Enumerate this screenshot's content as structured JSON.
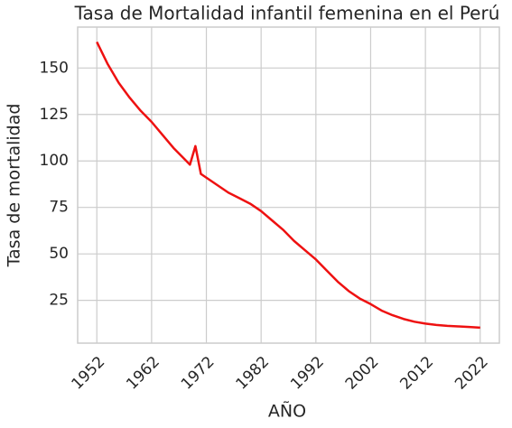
{
  "chart_data": {
    "type": "line",
    "title": "Tasa de Mortalidad infantil femenina en el Perú",
    "xlabel": "AÑO",
    "ylabel": "Tasa de mortalidad",
    "x": [
      1952,
      1954,
      1956,
      1958,
      1960,
      1962,
      1964,
      1966,
      1968,
      1969,
      1970,
      1971,
      1972,
      1974,
      1976,
      1978,
      1980,
      1982,
      1984,
      1986,
      1988,
      1990,
      1992,
      1994,
      1996,
      1998,
      2000,
      2002,
      2004,
      2006,
      2008,
      2010,
      2012,
      2014,
      2016,
      2018,
      2020,
      2022
    ],
    "series": [
      {
        "name": "Tasa de mortalidad",
        "color": "#ee1111",
        "values": [
          164,
          152,
          142,
          134,
          127,
          121,
          114,
          107,
          101,
          98,
          108,
          93,
          91,
          87,
          83,
          80,
          77,
          73,
          68,
          63,
          57,
          52,
          47,
          41,
          35,
          30,
          26,
          23,
          19.5,
          17,
          15,
          13.5,
          12.5,
          11.8,
          11.3,
          11,
          10.7,
          10.3
        ]
      }
    ],
    "xlim": [
      1948.5,
      2025.5
    ],
    "xticks": [
      1952,
      1962,
      1972,
      1982,
      1992,
      2002,
      2012,
      2022
    ],
    "ylim": [
      2,
      172
    ],
    "yticks": [
      25,
      50,
      75,
      100,
      125,
      150
    ],
    "grid": true
  }
}
